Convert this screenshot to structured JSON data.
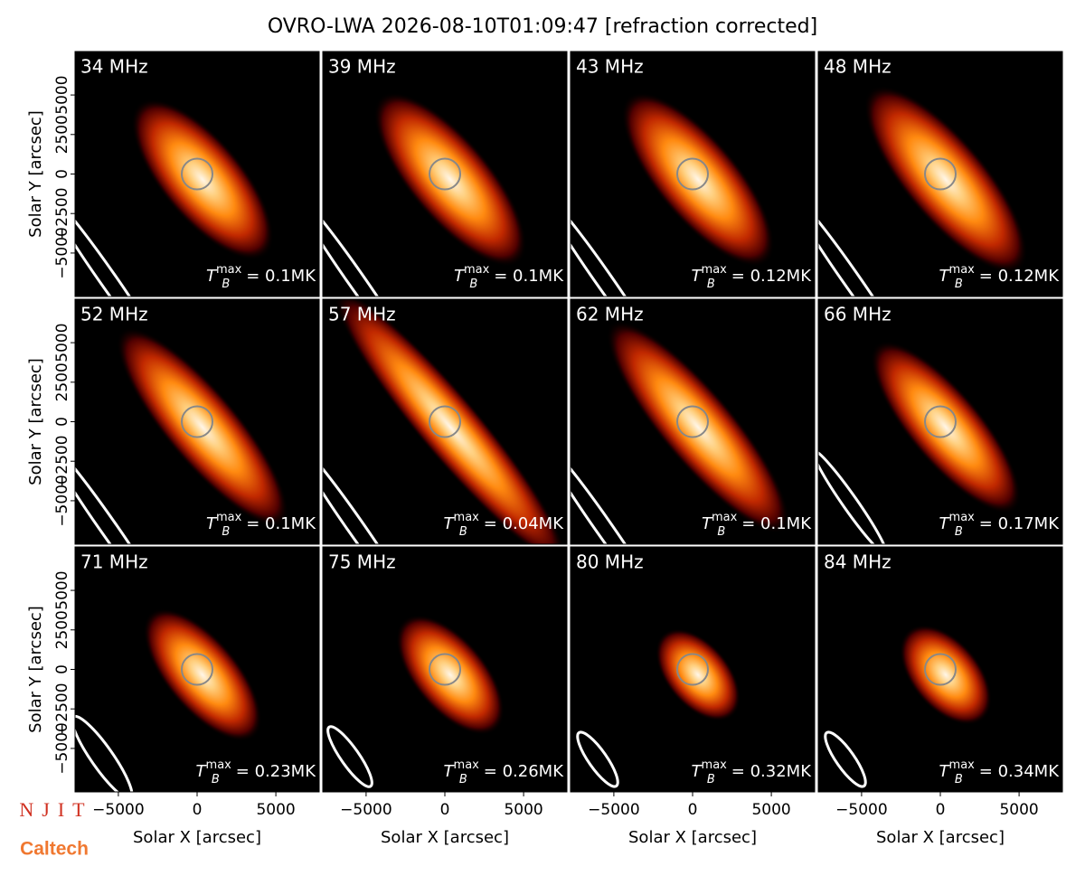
{
  "figure": {
    "title": "OVRO-LWA 2026-08-10T01:09:47 [refraction corrected]",
    "xlabel": "Solar X [arcsec]",
    "ylabel": "Solar Y [arcsec]",
    "xlim": [
      -7750,
      7750
    ],
    "ylim": [
      -7750,
      7750
    ],
    "xticks": [
      {
        "value": -5000,
        "label": "−5000"
      },
      0,
      5000
    ],
    "yticks": [
      {
        "value": -5000,
        "label": "−5000"
      },
      {
        "value": -2500,
        "label": "−2500"
      },
      0,
      2500,
      5000
    ],
    "tmax_symbol": "T",
    "tmax_sub": "B",
    "tmax_sup": "max",
    "panels": [
      {
        "label": "34 MHz",
        "tmax_label": "= 0.1MK"
      },
      {
        "label": "39 MHz",
        "tmax_label": "= 0.1MK"
      },
      {
        "label": "43 MHz",
        "tmax_label": "= 0.12MK"
      },
      {
        "label": "48 MHz",
        "tmax_label": "= 0.12MK"
      },
      {
        "label": "52 MHz",
        "tmax_label": "= 0.1MK"
      },
      {
        "label": "57 MHz",
        "tmax_label": "= 0.04MK"
      },
      {
        "label": "62 MHz",
        "tmax_label": "= 0.1MK"
      },
      {
        "label": "66 MHz",
        "tmax_label": "= 0.17MK"
      },
      {
        "label": "71 MHz",
        "tmax_label": "= 0.23MK"
      },
      {
        "label": "75 MHz",
        "tmax_label": "= 0.26MK"
      },
      {
        "label": "80 MHz",
        "tmax_label": "= 0.32MK"
      },
      {
        "label": "84 MHz",
        "tmax_label": "= 0.34MK"
      }
    ]
  },
  "logos": {
    "njit": "NJIT",
    "caltech": "Caltech"
  }
}
